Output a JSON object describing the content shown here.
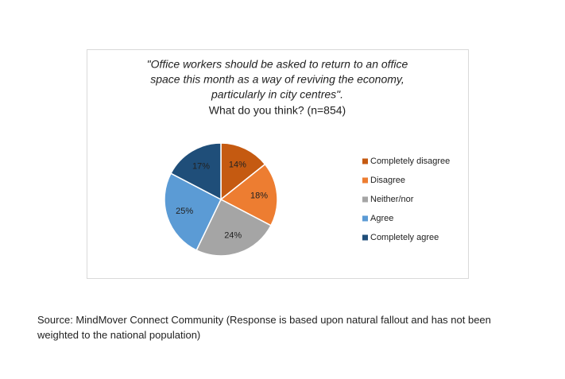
{
  "chart_data": {
    "type": "pie",
    "title": [
      "\"Office workers should be asked to return to an office",
      "space this month as a way of reviving the economy,",
      "particularly in city centres\"."
    ],
    "subtitle": "What do you think? (n=854)",
    "categories": [
      "Completely disagree",
      "Disagree",
      "Neither/nor",
      "Agree",
      "Completely agree"
    ],
    "values": [
      14,
      18,
      24,
      25,
      17
    ],
    "value_labels": [
      "14%",
      "18%",
      "24%",
      "25%",
      "17%"
    ],
    "colors": [
      "#c55a11",
      "#ed7d31",
      "#a5a5a5",
      "#5b9bd5",
      "#1f4e79"
    ],
    "legend": "right",
    "source": [
      "Source: MindMover Connect Community  (Response is based upon natural fallout and has not been",
      "weighted to the national population)"
    ]
  }
}
